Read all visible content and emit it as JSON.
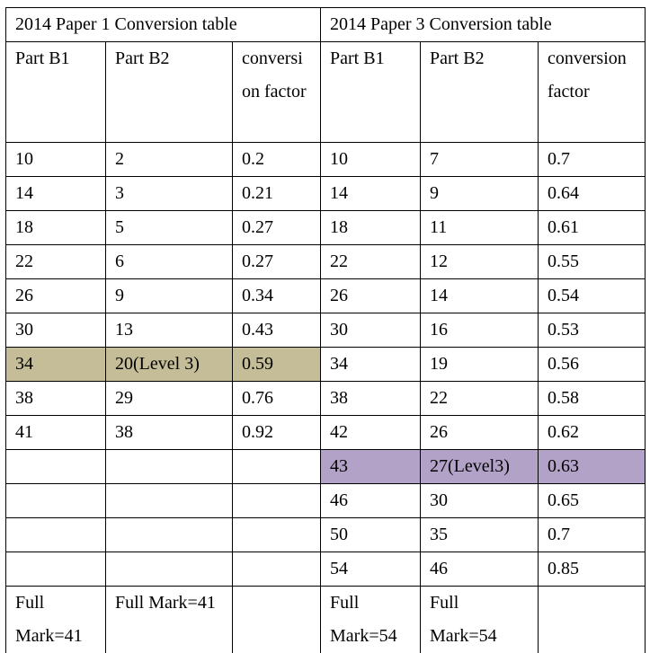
{
  "colors": {
    "highlight_paper1": "#C4BD97",
    "highlight_paper3": "#B3A2C7"
  },
  "paper1": {
    "title": "2014 Paper 1 Conversion table",
    "headers": [
      "Part B1",
      "Part B2",
      "conversion factor"
    ],
    "rows": [
      [
        "10",
        "2",
        "0.2"
      ],
      [
        "14",
        "3",
        "0.21"
      ],
      [
        "18",
        "5",
        "0.27"
      ],
      [
        "22",
        "6",
        "0.27"
      ],
      [
        "26",
        "9",
        "0.34"
      ],
      [
        "30",
        "13",
        "0.43"
      ],
      [
        "34",
        "20(Level 3)",
        "0.59"
      ],
      [
        "38",
        "29",
        "0.76"
      ],
      [
        "41",
        "38",
        "0.92"
      ],
      [
        "",
        "",
        ""
      ],
      [
        "",
        "",
        ""
      ],
      [
        "",
        "",
        ""
      ],
      [
        "",
        "",
        ""
      ]
    ],
    "footer": [
      "Full Mark=41",
      "Full Mark=41",
      ""
    ]
  },
  "paper3": {
    "title": "2014 Paper 3 Conversion table",
    "headers": [
      "Part B1",
      "Part B2",
      "conversion factor"
    ],
    "rows": [
      [
        "10",
        "7",
        "0.7"
      ],
      [
        "14",
        "9",
        "0.64"
      ],
      [
        "18",
        "11",
        "0.61"
      ],
      [
        "22",
        "12",
        "0.55"
      ],
      [
        "26",
        "14",
        "0.54"
      ],
      [
        "30",
        "16",
        "0.53"
      ],
      [
        "34",
        "19",
        "0.56"
      ],
      [
        "38",
        "22",
        "0.58"
      ],
      [
        "42",
        "26",
        "0.62"
      ],
      [
        "43",
        "27(Level3)",
        "0.63"
      ],
      [
        "46",
        "30",
        "0.65"
      ],
      [
        "50",
        "35",
        "0.7"
      ],
      [
        "54",
        "46",
        "0.85"
      ]
    ],
    "footer": [
      "Full Mark=54",
      "Full Mark=54",
      ""
    ]
  }
}
